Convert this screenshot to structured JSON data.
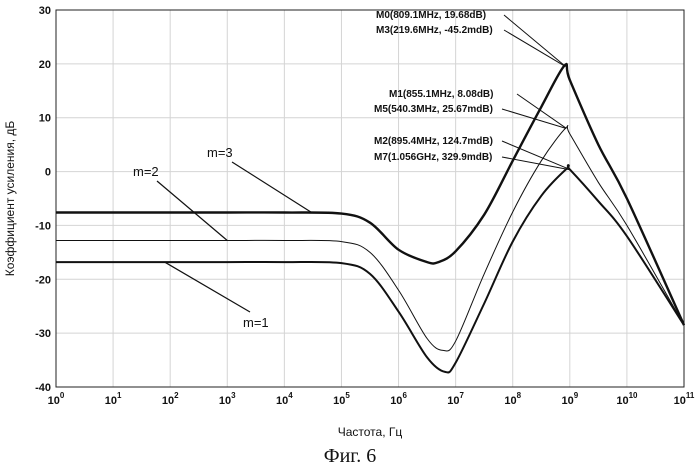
{
  "chart_data": {
    "type": "line",
    "xlabel": "Частота, Гц",
    "ylabel": "Коэффициент усиления, дБ",
    "x_scale": "log",
    "xlim": [
      1,
      100000000000
    ],
    "ylim": [
      -40,
      30
    ],
    "x_ticks": [
      {
        "base": "10",
        "exp": "0",
        "value": 1
      },
      {
        "base": "10",
        "exp": "1",
        "value": 10
      },
      {
        "base": "10",
        "exp": "2",
        "value": 100
      },
      {
        "base": "10",
        "exp": "3",
        "value": 1000
      },
      {
        "base": "10",
        "exp": "4",
        "value": 10000
      },
      {
        "base": "10",
        "exp": "5",
        "value": 100000
      },
      {
        "base": "10",
        "exp": "6",
        "value": 1000000
      },
      {
        "base": "10",
        "exp": "7",
        "value": 10000000
      },
      {
        "base": "10",
        "exp": "8",
        "value": 100000000
      },
      {
        "base": "10",
        "exp": "9",
        "value": 1000000000
      },
      {
        "base": "10",
        "exp": "10",
        "value": 10000000000
      },
      {
        "base": "10",
        "exp": "11",
        "value": 100000000000
      }
    ],
    "y_ticks": [
      30,
      20,
      10,
      0,
      -10,
      -20,
      -30,
      -40
    ],
    "grid": true,
    "series": [
      {
        "name": "m=3",
        "x": [
          1,
          10,
          100,
          1000,
          10000,
          100000,
          316000,
          1000000,
          3160000,
          5000000,
          10000000,
          31600000,
          100000000,
          316000000,
          809100000,
          1000000000,
          3160000000,
          10000000000,
          100000000000
        ],
        "y": [
          -7.6,
          -7.6,
          -7.6,
          -7.6,
          -7.6,
          -7.8,
          -9.5,
          -14.5,
          -16.8,
          -16.8,
          -14.8,
          -8,
          2,
          12,
          19.7,
          17,
          5,
          -5,
          -28.5
        ]
      },
      {
        "name": "m=2",
        "x": [
          1,
          10,
          100,
          1000,
          10000,
          100000,
          316000,
          1000000,
          3160000,
          6000000,
          10000000,
          31600000,
          100000000,
          316000000,
          855100000,
          1000000000,
          3160000000,
          10000000000,
          100000000000
        ],
        "y": [
          -12.8,
          -12.8,
          -12.8,
          -12.8,
          -12.8,
          -13,
          -15,
          -22,
          -31,
          -33.2,
          -31.5,
          -19,
          -7.5,
          2,
          8.1,
          7,
          -2,
          -10,
          -28.5
        ]
      },
      {
        "name": "m=1",
        "x": [
          1,
          10,
          100,
          1000,
          10000,
          100000,
          316000,
          1000000,
          3160000,
          6500000,
          10000000,
          31600000,
          100000000,
          316000000,
          895400000,
          1000000000,
          3160000000,
          10000000000,
          100000000000
        ],
        "y": [
          -16.8,
          -16.8,
          -16.8,
          -16.8,
          -16.8,
          -17,
          -19,
          -26,
          -34.5,
          -37.2,
          -35.5,
          -24.5,
          -13,
          -4.5,
          0.6,
          0.4,
          -5.5,
          -12,
          -28.5
        ]
      }
    ],
    "markers": [
      {
        "label": "M0(809.1MHz, 19.68dB)",
        "x": 809100000,
        "y": 19.68
      },
      {
        "label": "M3(219.6MHz, -45.2mdB)",
        "x": 840000000,
        "y": 19.5
      },
      {
        "label": "M1(855.1MHz, 8.08dB)",
        "x": 855100000,
        "y": 8.08
      },
      {
        "label": "M5(540.3MHz, 25.67mdB)",
        "x": 870000000,
        "y": 8.0
      },
      {
        "label": "M2(895.4MHz, 124.7mdB)",
        "x": 895400000,
        "y": 0.6
      },
      {
        "label": "M7(1.056GHz, 329.9mdB)",
        "x": 1056000000,
        "y": 0.3
      }
    ],
    "annotations": [
      {
        "text": "m=3"
      },
      {
        "text": "m=2"
      },
      {
        "text": "m=1"
      }
    ]
  },
  "caption": "Фиг. 6"
}
